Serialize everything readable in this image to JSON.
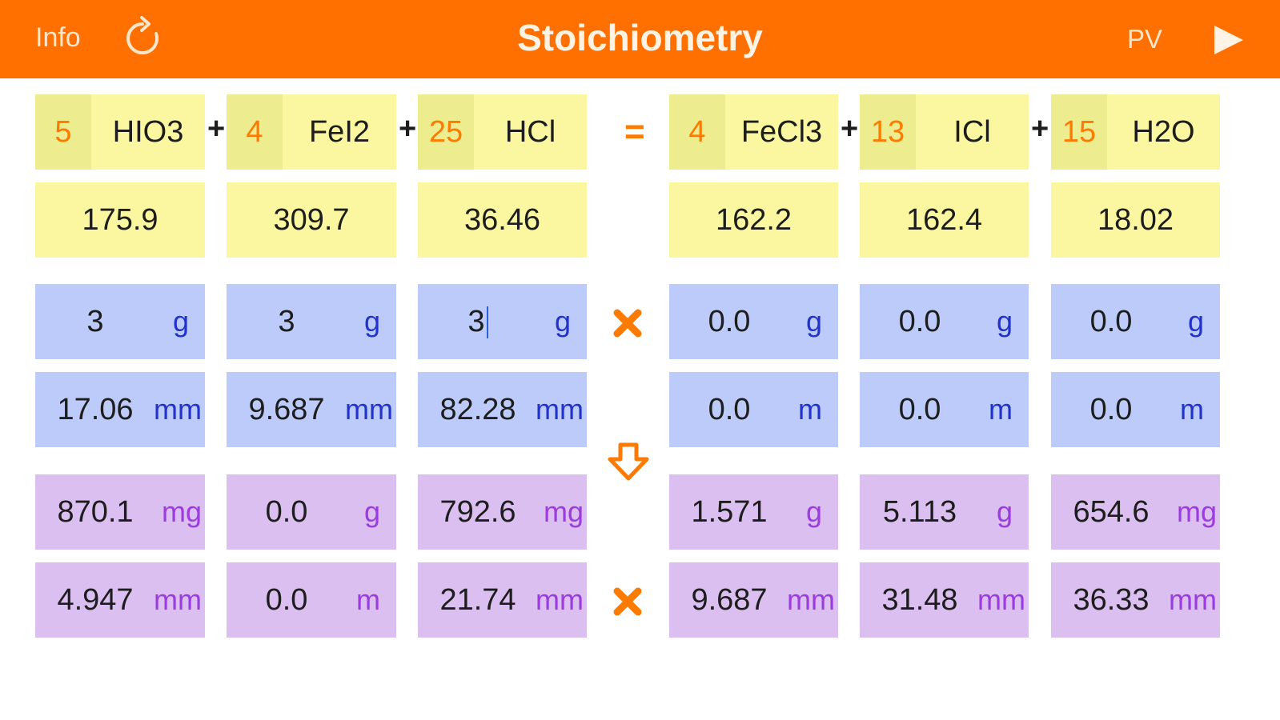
{
  "header": {
    "info_label": "Info",
    "title": "Stoichiometry",
    "pv_label": "PV",
    "refresh_icon": "refresh-icon",
    "play_icon": "play-icon"
  },
  "colors": {
    "header_bg": "#ff7000",
    "accent": "#ff7a00",
    "formula_bg": "#fbf7a0",
    "mass_input_bg": "#bccbfa",
    "result_bg": "#dbbff0"
  },
  "equation": {
    "reactants": [
      {
        "coef": "5",
        "formula": "HIO3"
      },
      {
        "coef": "4",
        "formula": "FeI2"
      },
      {
        "coef": "25",
        "formula": "HCl"
      }
    ],
    "equals": "=",
    "plus": "+",
    "products": [
      {
        "coef": "4",
        "formula": "FeCl3"
      },
      {
        "coef": "13",
        "formula": "ICl"
      },
      {
        "coef": "15",
        "formula": "H2O"
      }
    ]
  },
  "molar_masses": [
    "175.9",
    "309.7",
    "36.46",
    "162.2",
    "162.4",
    "18.02"
  ],
  "input_mass": [
    {
      "value": "3",
      "unit": "g"
    },
    {
      "value": "3",
      "unit": "g"
    },
    {
      "value": "3",
      "unit": "g"
    },
    {
      "value": "0.0",
      "unit": "g"
    },
    {
      "value": "0.0",
      "unit": "g"
    },
    {
      "value": "0.0",
      "unit": "g"
    }
  ],
  "input_moles": [
    {
      "value": "17.06",
      "unit": "mm"
    },
    {
      "value": "9.687",
      "unit": "mm"
    },
    {
      "value": "82.28",
      "unit": "mm"
    },
    {
      "value": "0.0",
      "unit": "m"
    },
    {
      "value": "0.0",
      "unit": "m"
    },
    {
      "value": "0.0",
      "unit": "m"
    }
  ],
  "result_mass": [
    {
      "value": "870.1",
      "unit": "mg"
    },
    {
      "value": "0.0",
      "unit": "g"
    },
    {
      "value": "792.6",
      "unit": "mg"
    },
    {
      "value": "1.571",
      "unit": "g"
    },
    {
      "value": "5.113",
      "unit": "g"
    },
    {
      "value": "654.6",
      "unit": "mg"
    }
  ],
  "result_moles": [
    {
      "value": "4.947",
      "unit": "mm"
    },
    {
      "value": "0.0",
      "unit": "m"
    },
    {
      "value": "21.74",
      "unit": "mm"
    },
    {
      "value": "9.687",
      "unit": "mm"
    },
    {
      "value": "31.48",
      "unit": "mm"
    },
    {
      "value": "36.33",
      "unit": "mm"
    }
  ],
  "icons": {
    "clear_inputs": "close-x-icon",
    "calculate": "down-arrow-icon",
    "clear_results": "close-x-icon"
  }
}
